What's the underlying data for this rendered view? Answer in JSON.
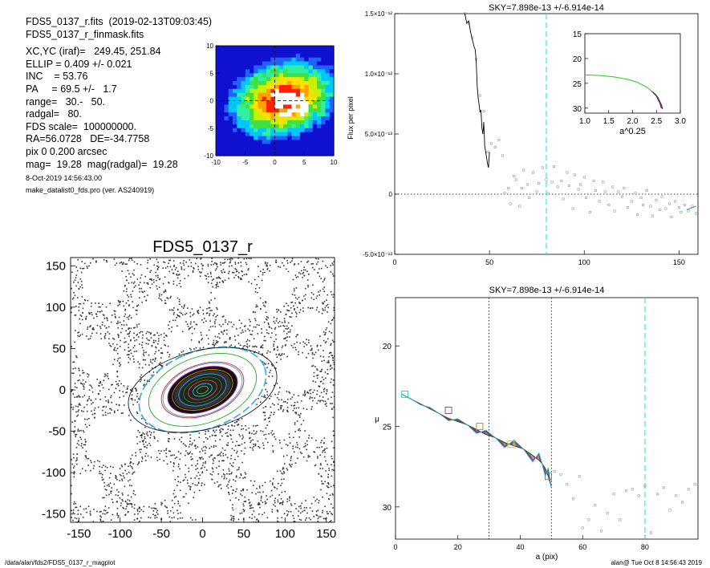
{
  "header": {
    "lines": [
      "FDS5_0137_r.fits  (2019-02-13T09:03:45)",
      "FDS5_0137_r_finmask.fits"
    ],
    "params": [
      "XC,YC (iraf)=   249.45, 251.84",
      "ELLIP = 0.409 +/- 0.021",
      "INC    = 53.76",
      "PA     = 69.5 +/-   1.7",
      "range=   30.-   50.",
      "radgal=   80.",
      "FDS scale=  100000000.",
      "RA=56.0728   DE=-34.7758",
      "pix 0 0.200 arcsec",
      "mag=  19.28  mag(radgal)=  19.28"
    ],
    "date": "8-Oct-2019 14:56:43.00",
    "program": "make_datalist0_fds.pro (ver. AS240919)"
  },
  "footer": {
    "path": "/data/alan/fds2/FDS5_0137_r_magplot",
    "user": "alan@  Tue Oct  8 14:56:43 2019"
  },
  "colors": {
    "dashed_line": "#00e5ee",
    "model_line": "#22cc22",
    "ellipse_dashed": "#33aadd"
  },
  "chart_data": [
    {
      "id": "thumbnail",
      "type": "heatmap",
      "xlim": [
        -10,
        10
      ],
      "ylim": [
        -10,
        10
      ],
      "xticks": [
        "-10",
        "-5",
        "0",
        "5",
        "10"
      ],
      "yticks": [
        "10",
        "5",
        "0",
        "-5",
        "-10"
      ]
    },
    {
      "id": "flux",
      "type": "line",
      "title": "SKY=7.898e-13 +/-6.914e-14",
      "ylabel": "Flux per pixel",
      "xlim": [
        0,
        160
      ],
      "ylim": [
        -5e-13,
        1.5e-12
      ],
      "xticks": [
        "0",
        "50",
        "100",
        "150"
      ],
      "yticks": [
        {
          "v": -5e-13,
          "label": "-5.0×10⁻¹³"
        },
        {
          "v": 0,
          "label": "0"
        },
        {
          "v": 5e-13,
          "label": "5.0×10⁻¹³"
        },
        {
          "v": 1e-12,
          "label": "1.0×10⁻¹²"
        },
        {
          "v": 1.5e-12,
          "label": "1.5×10⁻¹²"
        }
      ],
      "vline": 80,
      "profile_x": [
        37,
        38,
        39,
        40,
        41,
        42,
        42.5,
        43,
        43.5,
        44,
        44.5,
        45,
        45.5,
        46,
        46.5,
        47,
        47.5,
        48,
        48.5,
        49,
        49.5,
        50
      ],
      "profile_y": [
        1.5e-12,
        1.42e-12,
        1.44e-12,
        1.35e-12,
        1.28e-12,
        1.22e-12,
        1.2e-12,
        1.1e-12,
        9e-13,
        8e-13,
        7.5e-13,
        6.8e-13,
        7e-13,
        5.5e-13,
        5e-13,
        6e-13,
        4e-13,
        3.5e-13,
        3e-13,
        2.5e-13,
        2.2e-13,
        3.5e-13
      ],
      "scatter_x": [
        37,
        39,
        41,
        43,
        45,
        47,
        49,
        51,
        53,
        55,
        57,
        58,
        60,
        61,
        63,
        64,
        66,
        67,
        68,
        70,
        71,
        73,
        75,
        76,
        78,
        80,
        81,
        83,
        84,
        86,
        88,
        89,
        91,
        92,
        94,
        95,
        97,
        98,
        100,
        101,
        103,
        105,
        106,
        108,
        110,
        111,
        113,
        115,
        116,
        118,
        120,
        121,
        123,
        125,
        127,
        128,
        130,
        131,
        133,
        135,
        136,
        138,
        140,
        141,
        143,
        145,
        146,
        148,
        150,
        151,
        153,
        155,
        157,
        159
      ],
      "scatter_y": [
        1.5e-12,
        1.42e-12,
        1.3e-12,
        1.12e-12,
        8.2e-13,
        6.9e-13,
        3.5e-13,
        4.2e-13,
        3.9e-13,
        4.5e-13,
        3.2e-13,
        1e-14,
        5e-14,
        -8e-14,
        1.5e-13,
        1.2e-13,
        -1e-13,
        5e-14,
        2e-13,
        8e-14,
        -3e-14,
        1.8e-13,
        2e-14,
        9e-14,
        2.2e-13,
        1.2e-13,
        5e-15,
        1e-13,
        2.3e-13,
        6e-14,
        1.1e-13,
        -4e-14,
        1.8e-13,
        7e-14,
        -1.2e-13,
        1.6e-13,
        4e-14,
        8e-14,
        1.4e-13,
        -3e-14,
        -1.5e-13,
        1.1e-13,
        3e-14,
        -6e-14,
        1e-13,
        2e-14,
        -9e-14,
        6e-14,
        -1.4e-13,
        2e-14,
        -2e-14,
        5e-14,
        -1.1e-13,
        -6e-14,
        1e-14,
        -1.7e-13,
        -3e-14,
        -9e-14,
        3e-14,
        -1e-13,
        -1.8e-13,
        -5e-14,
        -1.3e-13,
        -2e-14,
        -1.2e-13,
        -8e-14,
        -1.9e-13,
        -6e-14,
        -1.1e-13,
        -1.5e-13,
        -9e-14,
        -1.4e-13,
        -1e-13,
        -1.6e-13
      ]
    },
    {
      "id": "inset",
      "type": "line",
      "xlabel": "a^0.25",
      "xlim": [
        1.0,
        3.0
      ],
      "ylim": [
        31,
        15
      ],
      "xticks": [
        "1.0",
        "1.5",
        "2.0",
        "2.5",
        "3.0"
      ],
      "yticks": [
        "15",
        "20",
        "25",
        "30"
      ],
      "model_x": [
        1.0,
        1.3,
        1.6,
        1.9,
        2.1,
        2.3,
        2.4,
        2.5,
        2.55,
        2.6
      ],
      "model_y": [
        23.3,
        23.4,
        23.7,
        24.2,
        24.8,
        25.8,
        26.6,
        27.6,
        28.4,
        29.8
      ],
      "data_x": [
        2.4,
        2.45,
        2.5,
        2.52,
        2.55,
        2.58,
        2.6
      ],
      "data_y": [
        26.6,
        27.0,
        27.6,
        28.0,
        28.6,
        29.2,
        30.0
      ]
    },
    {
      "id": "map",
      "type": "scatter",
      "title": "FDS5_0137_r",
      "xlim": [
        -160,
        160
      ],
      "ylim": [
        -160,
        160
      ],
      "xticks": [
        "-150",
        "-100",
        "-50",
        "0",
        "50",
        "100",
        "150"
      ],
      "yticks": [
        "150",
        "100",
        "50",
        "0",
        "-50",
        "-100",
        "-150"
      ],
      "ellipse_pa_deg": 20,
      "ellipse_ratio": 0.59,
      "ellipse_semi_major": [
        80,
        68,
        52,
        44,
        38,
        30,
        24,
        18,
        12,
        7
      ]
    },
    {
      "id": "mu",
      "type": "scatter",
      "title": "SKY=7.898e-13 +/-6.914e-14",
      "xlabel": "a (pix)",
      "ylabel": "μ",
      "xlim": [
        0,
        97
      ],
      "ylim": [
        32,
        17
      ],
      "xticks": [
        "0",
        "20",
        "40",
        "60",
        "80"
      ],
      "yticks": [
        "20",
        "25",
        "30"
      ],
      "vlines_dotted": [
        30,
        50
      ],
      "vline_dashed": 80,
      "profile_x": [
        2,
        5,
        8,
        11,
        14,
        17,
        20,
        23,
        26,
        29,
        32,
        35,
        38,
        41,
        44,
        46,
        47,
        48,
        49,
        50
      ],
      "profile_y": [
        23.0,
        23.3,
        23.6,
        23.9,
        24.2,
        24.5,
        24.7,
        24.9,
        25.2,
        25.5,
        25.7,
        26.0,
        26.2,
        26.4,
        26.8,
        27.1,
        27.3,
        27.6,
        28.1,
        28.8
      ],
      "boxes_x": [
        3,
        17,
        27,
        37,
        49
      ],
      "boxes_y": [
        23.0,
        24.0,
        25.0,
        26.1,
        28.1
      ],
      "scatter_x": [
        51,
        53,
        55,
        57,
        59,
        60,
        62,
        64,
        66,
        68,
        70,
        72,
        74,
        76,
        78,
        80,
        82,
        84,
        86,
        88,
        90,
        92,
        94,
        96
      ],
      "scatter_y": [
        27.8,
        28.0,
        28.6,
        29.5,
        28.1,
        31.3,
        30.8,
        29.9,
        31.5,
        30.4,
        29.2,
        30.8,
        29.0,
        28.9,
        29.3,
        28.7,
        31.6,
        29.2,
        28.8,
        30.2,
        29.3,
        29.7,
        28.9,
        28.6
      ]
    }
  ]
}
